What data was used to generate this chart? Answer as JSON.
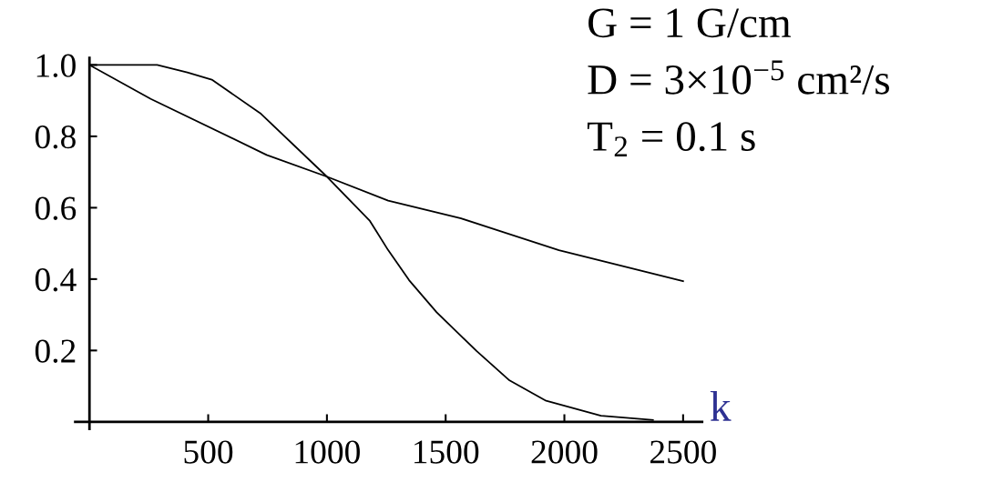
{
  "chart_data": {
    "type": "line",
    "xlabel": "k",
    "xlim": [
      -60,
      2580
    ],
    "ylim": [
      -0.02,
      1.02
    ],
    "xticks": [
      500,
      1000,
      1500,
      2000,
      2500
    ],
    "yticks": [
      0.2,
      0.4,
      0.6,
      0.8,
      {
        "value": 1,
        "label": "1.0"
      }
    ],
    "grid": false,
    "legend": false,
    "series": [
      {
        "color": "#000000",
        "x": [
          0,
          285,
          412,
          515,
          719,
          1000,
          1181,
          1258,
          1346,
          1462,
          1631,
          1769,
          1923,
          2154,
          2373
        ],
        "values": [
          1.0,
          1.0,
          0.979,
          0.959,
          0.865,
          0.687,
          0.563,
          0.481,
          0.397,
          0.307,
          0.198,
          0.116,
          0.059,
          0.017,
          0.005
        ]
      },
      {
        "color": "#000000",
        "x": [
          0,
          258,
          746,
          1000,
          1258,
          1565,
          1977,
          2500
        ],
        "values": [
          1.0,
          0.905,
          0.748,
          0.687,
          0.62,
          0.57,
          0.481,
          0.394
        ]
      }
    ],
    "annotations": [
      "G = 1 G/cm",
      "D = 3×10$^{−5}$ cm²/s",
      "T$_{2}$ = 0.1 s"
    ]
  }
}
